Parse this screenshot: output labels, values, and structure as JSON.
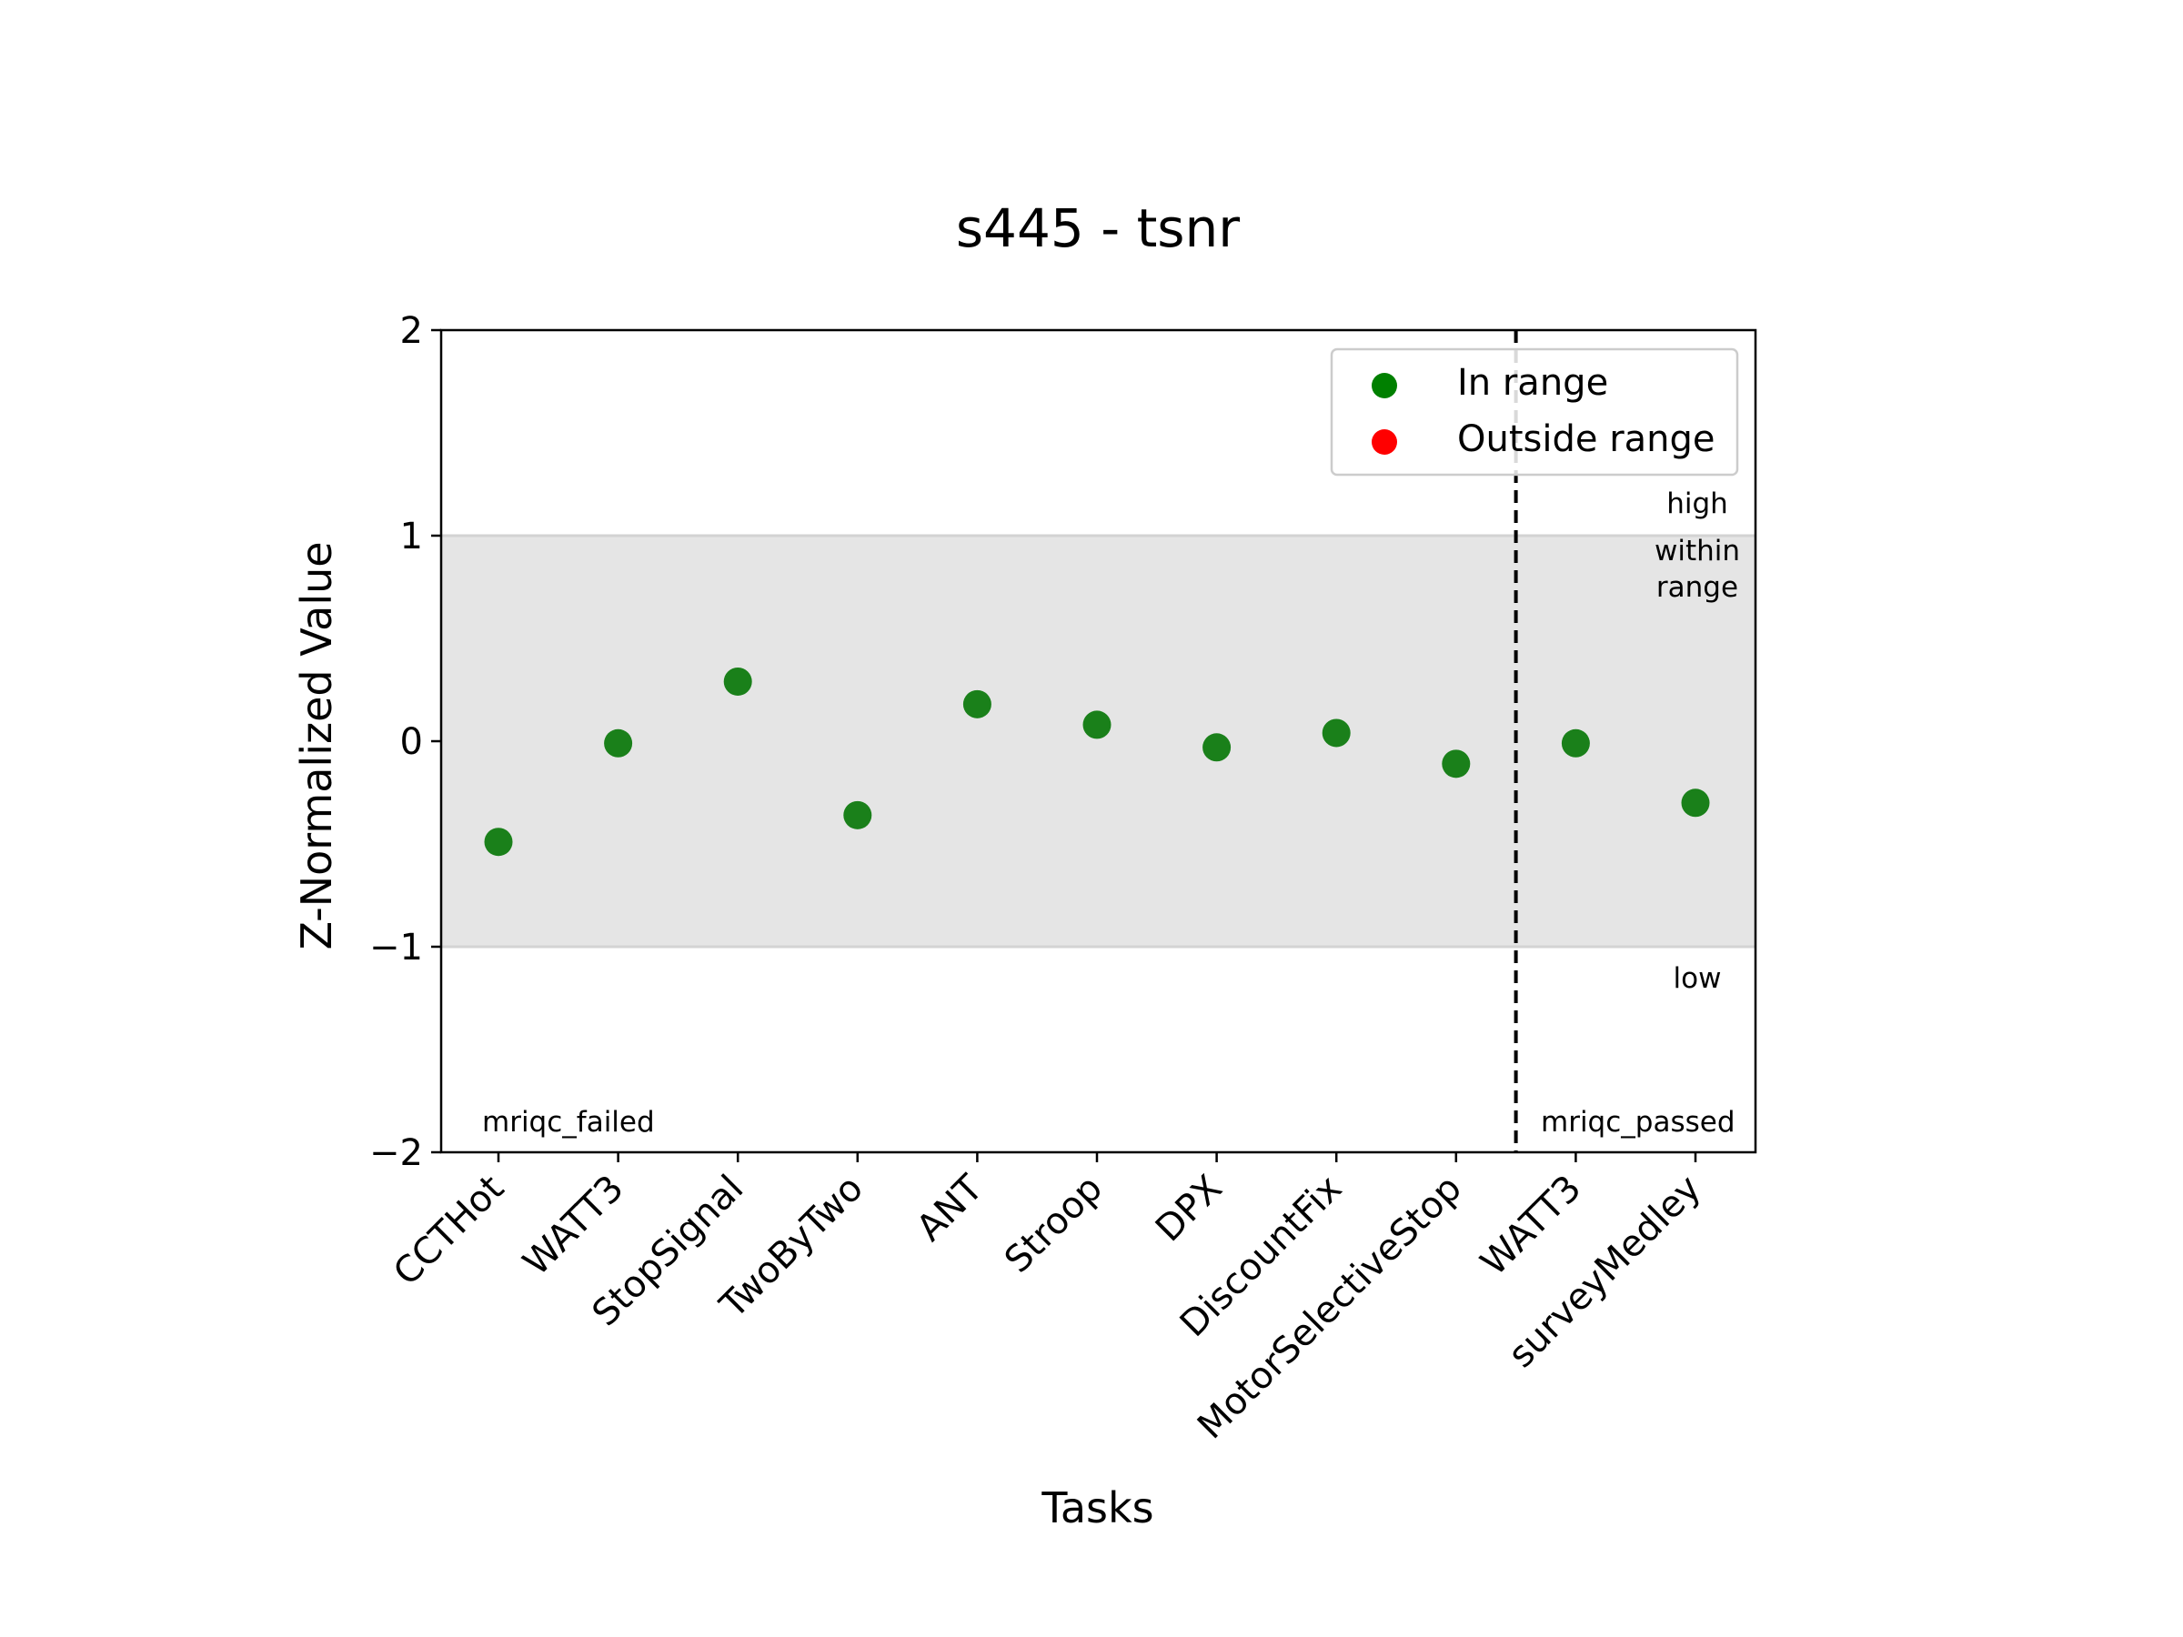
{
  "chart_data": {
    "type": "scatter",
    "title": "s445 - tsnr",
    "xlabel": "Tasks",
    "ylabel": "Z-Normalized Value",
    "ylim": [
      -2,
      2
    ],
    "yticks": [
      2,
      1,
      0,
      -1,
      -2
    ],
    "ytick_labels": [
      "2",
      "1",
      "0",
      "−1",
      "−2"
    ],
    "categories": [
      "CCTHot",
      "WATT3",
      "StopSignal",
      "TwoByTwo",
      "ANT",
      "Stroop",
      "DPX",
      "DiscountFix",
      "MotorSelectiveStop",
      "WATT3",
      "surveyMedley"
    ],
    "values": [
      -0.49,
      -0.01,
      0.29,
      -0.36,
      0.18,
      0.08,
      -0.03,
      0.04,
      -0.11,
      -0.01,
      -0.3
    ],
    "in_range_band": [
      -1,
      1
    ],
    "divider_after_index": 8,
    "legend": {
      "position": "top-right",
      "entries": [
        {
          "label": "In range",
          "color": "#008000"
        },
        {
          "label": "Outside range",
          "color": "#ff0000"
        }
      ]
    },
    "annotations": {
      "high": "high",
      "within_line1": "within",
      "within_line2": "range",
      "low": "low",
      "group_left": "mriqc_failed",
      "group_right": "mriqc_passed"
    },
    "colors": {
      "in_range_point": "#1a801a",
      "band": "#e5e5e5",
      "band_edge": "#d3d3d3"
    }
  }
}
